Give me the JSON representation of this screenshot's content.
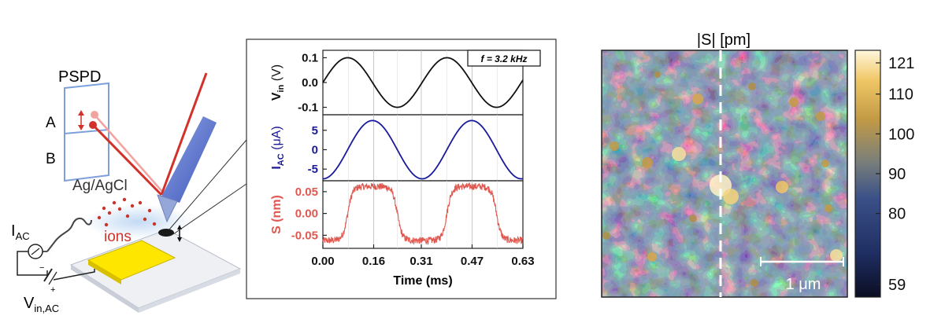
{
  "schematic": {
    "detector_label": "PSPD",
    "segment_a": "A",
    "segment_b": "B",
    "electrode_label": "Ag/AgCl",
    "ions_label": "ions",
    "current_label": "I",
    "current_sub": "AC",
    "voltage_label": "V",
    "voltage_sub": "in,AC",
    "minus": "−",
    "plus": "+"
  },
  "chart_data": [
    {
      "type": "line",
      "annotation": "f = 3.2 kHz",
      "xlabel": "Time (ms)",
      "xlim": [
        0,
        0.63
      ],
      "xticks": [
        "0.00",
        "0.16",
        "0.31",
        "0.47",
        "0.63"
      ],
      "xtick_values": [
        0.0,
        0.16,
        0.31,
        0.47,
        0.63
      ],
      "grid": "vertical",
      "panels": [
        {
          "ylabel_main": "V",
          "ylabel_sub": "in",
          "ylabel_unit": " (V)",
          "color": "#111111",
          "ylim": [
            -0.13,
            0.13
          ],
          "yticks": [
            "0.1",
            "0.0",
            "-0.1"
          ],
          "ytick_values": [
            0.1,
            0.0,
            -0.1
          ],
          "series": {
            "amplitude": 0.1,
            "frequency_khz": 3.2,
            "phase_deg": 0
          }
        },
        {
          "ylabel_main": "I",
          "ylabel_sub": "AC",
          "ylabel_unit": " (μA)",
          "color": "#1a1a9c",
          "ylim": [
            -8,
            9
          ],
          "yticks": [
            "5",
            "0",
            "-5"
          ],
          "ytick_values": [
            5,
            0,
            -5
          ],
          "series": {
            "amplitude": 7.5,
            "frequency_khz": 3.2,
            "phase_deg": -90
          }
        },
        {
          "ylabel_main": "S (nm)",
          "ylabel_sub": "",
          "ylabel_unit": "",
          "color": "#e0584f",
          "ylim": [
            -0.08,
            0.075
          ],
          "yticks": [
            "0.05",
            "0.00",
            "-0.05"
          ],
          "ytick_values": [
            0.05,
            0.0,
            -0.05
          ],
          "series": {
            "amplitude": 0.062,
            "frequency_khz": 3.2,
            "phase_deg": -90,
            "shape": "square-like",
            "noise": 0.008
          }
        }
      ]
    },
    {
      "type": "heatmap",
      "title": "|S| [pm]",
      "colorbar_ticks": [
        "121",
        "110",
        "100",
        "90",
        "80",
        "59"
      ],
      "colorbar_values": [
        121,
        110,
        100,
        90,
        80,
        59
      ],
      "colorscale": [
        "#0b0d22",
        "#1f2f63",
        "#3a5088",
        "#7a7f7a",
        "#c29a45",
        "#f0c766",
        "#fff6dc"
      ],
      "scalebar_label": "1 μm",
      "scan_line": "vertical dashed line"
    }
  ]
}
